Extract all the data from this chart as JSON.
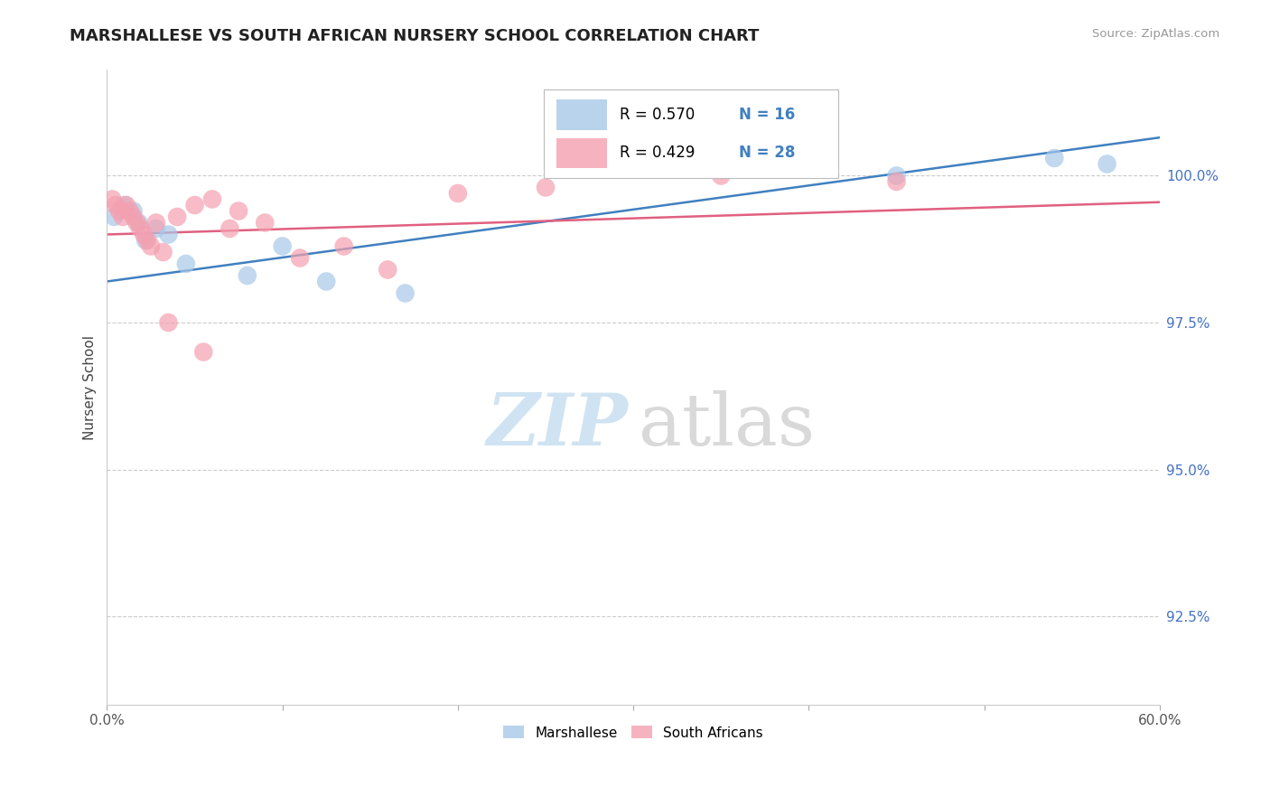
{
  "title": "MARSHALLESE VS SOUTH AFRICAN NURSERY SCHOOL CORRELATION CHART",
  "source": "Source: ZipAtlas.com",
  "ylabel": "Nursery School",
  "legend_r_blue": "R = 0.570",
  "legend_n_blue": "N = 16",
  "legend_r_pink": "R = 0.429",
  "legend_n_pink": "N = 28",
  "legend_label_blue": "Marshallese",
  "legend_label_pink": "South Africans",
  "blue_color": "#a8c8e8",
  "pink_color": "#f4a0b0",
  "blue_line_color": "#4080c0",
  "pink_line_color": "#e06080",
  "x_min": 0.0,
  "x_max": 60.0,
  "y_min": 91.0,
  "y_max": 101.8,
  "y_ticks": [
    92.5,
    95.0,
    97.5,
    100.0
  ],
  "y_tick_labels": [
    "92.5%",
    "95.0%",
    "97.5%",
    "100.0%"
  ],
  "blue_points": [
    [
      0.4,
      99.3
    ],
    [
      1.0,
      99.5
    ],
    [
      1.5,
      99.4
    ],
    [
      1.8,
      99.2
    ],
    [
      2.2,
      98.9
    ],
    [
      2.8,
      99.1
    ],
    [
      3.5,
      99.0
    ],
    [
      4.5,
      98.5
    ],
    [
      8.0,
      98.3
    ],
    [
      10.0,
      98.8
    ],
    [
      12.5,
      98.2
    ],
    [
      17.0,
      98.0
    ],
    [
      35.0,
      100.1
    ],
    [
      45.0,
      100.0
    ],
    [
      54.0,
      100.3
    ],
    [
      57.0,
      100.2
    ]
  ],
  "pink_points": [
    [
      0.3,
      99.6
    ],
    [
      0.5,
      99.5
    ],
    [
      0.7,
      99.4
    ],
    [
      0.9,
      99.3
    ],
    [
      1.1,
      99.5
    ],
    [
      1.3,
      99.4
    ],
    [
      1.5,
      99.3
    ],
    [
      1.7,
      99.2
    ],
    [
      1.9,
      99.1
    ],
    [
      2.1,
      99.0
    ],
    [
      2.3,
      98.9
    ],
    [
      2.5,
      98.8
    ],
    [
      2.8,
      99.2
    ],
    [
      3.2,
      98.7
    ],
    [
      4.0,
      99.3
    ],
    [
      5.0,
      99.5
    ],
    [
      6.0,
      99.6
    ],
    [
      7.5,
      99.4
    ],
    [
      9.0,
      99.2
    ],
    [
      11.0,
      98.6
    ],
    [
      13.5,
      98.8
    ],
    [
      3.5,
      97.5
    ],
    [
      7.0,
      99.1
    ],
    [
      16.0,
      98.4
    ],
    [
      20.0,
      99.7
    ],
    [
      25.0,
      99.8
    ],
    [
      35.0,
      100.0
    ],
    [
      45.0,
      99.9
    ]
  ],
  "pink_isolated_point": [
    5.5,
    97.0
  ]
}
